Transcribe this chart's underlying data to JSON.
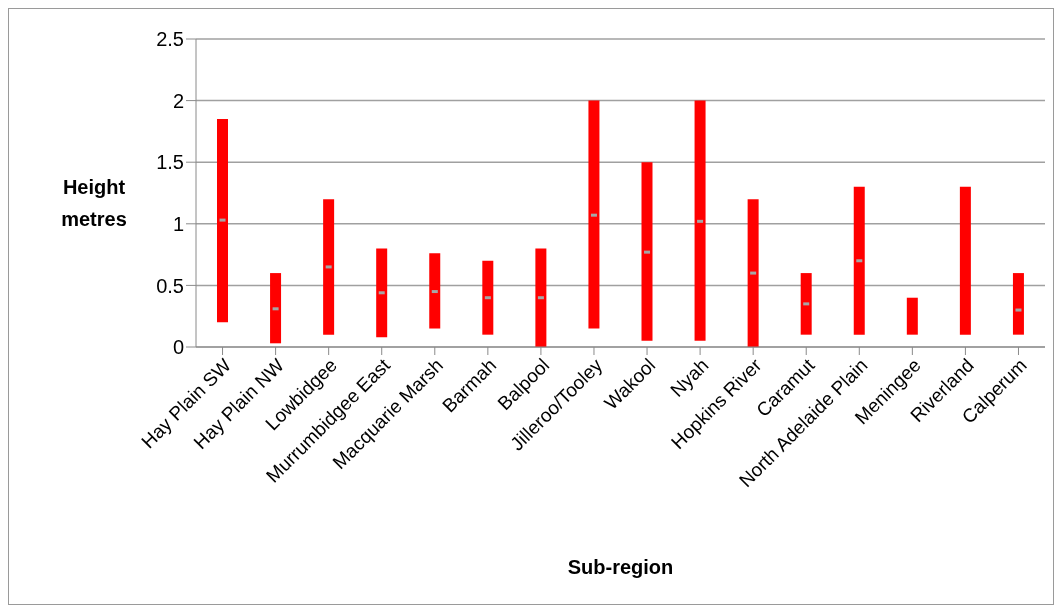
{
  "chart_data": {
    "type": "bar",
    "xlabel": "Sub-region",
    "ylabel": "Height metres",
    "categories": [
      "Hay Plain SW",
      "Hay Plain NW",
      "Lowbidgee",
      "Murrumbidgee East",
      "Macquarie Marsh",
      "Barmah",
      "Balpool",
      "Jilleroo/Tooley",
      "Wakool",
      "Nyah",
      "Hopkins River",
      "Caramut",
      "North Adelaide Plain",
      "Meningee",
      "Riverland",
      "Calperum"
    ],
    "series": [
      {
        "color": "#ff0000",
        "base": [
          0.2,
          0.03,
          0.1,
          0.08,
          0.15,
          0.1,
          0,
          0.15,
          0.05,
          0.05,
          0,
          0.1,
          0.1,
          0.1,
          0.1,
          0.1
        ],
        "values": [
          1.65,
          0.57,
          1.1,
          0.72,
          0.61,
          0.6,
          0.8,
          1.85,
          1.45,
          1.95,
          1.2,
          0.5,
          1.2,
          0.3,
          1.2,
          0.5
        ]
      },
      {
        "type": "scatter",
        "color": "#a6a6a6",
        "x": [
          "Hay Plain SW",
          "Hay Plain NW",
          "Lowbidgee",
          "Murrumbidgee East",
          "Macquarie Marsh",
          "Barmah",
          "Balpool",
          "Jilleroo/Tooley",
          "Wakool",
          "Nyah",
          "Hopkins River",
          "Caramut",
          "North Adelaide Plain",
          "Meningee",
          "Riverland",
          "Calperum"
        ],
        "values": [
          1.03,
          0.31,
          0.65,
          0.44,
          0.45,
          0.4,
          0.4,
          1.07,
          0.77,
          1.02,
          0.6,
          0.35,
          0.7,
          null,
          null,
          0.3
        ]
      }
    ],
    "ylim": [
      0,
      2.5
    ],
    "yticks": [
      0,
      0.5,
      1,
      1.5,
      2,
      2.5
    ],
    "grid": "y",
    "legend": false
  }
}
